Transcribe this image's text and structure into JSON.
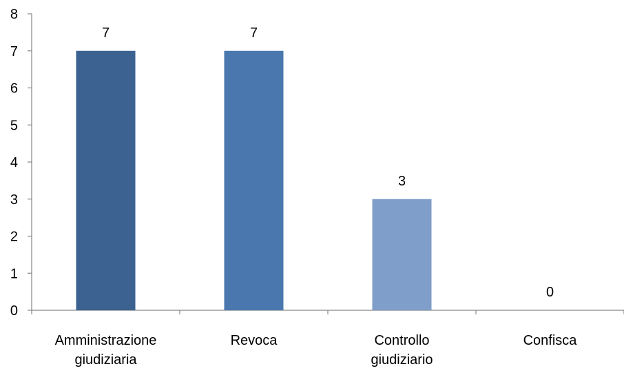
{
  "chart_data": {
    "type": "bar",
    "categories": [
      [
        "Amministrazione",
        "giudiziaria"
      ],
      [
        "Revoca"
      ],
      [
        "Controllo",
        "giudiziario"
      ],
      [
        "Confisca"
      ]
    ],
    "values": [
      7,
      7,
      3,
      0
    ],
    "data_labels": [
      "7",
      "7",
      "3",
      "0"
    ],
    "bar_colors": [
      "#3b6291",
      "#4a78ae",
      "#7f9ec9",
      "#a6bde0"
    ],
    "ylim": [
      0,
      8
    ],
    "yticks": [
      0,
      1,
      2,
      3,
      4,
      5,
      6,
      7,
      8
    ],
    "ytick_labels": [
      "0",
      "1",
      "2",
      "3",
      "4",
      "5",
      "6",
      "7",
      "8"
    ],
    "title": "",
    "xlabel": "",
    "ylabel": "",
    "grid": false,
    "legend": "none",
    "axis_color": "#868686"
  }
}
